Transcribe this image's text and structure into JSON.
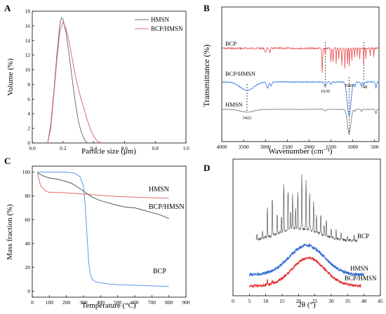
{
  "panels": {
    "a": {
      "letter": "A"
    },
    "b": {
      "letter": "B"
    },
    "c": {
      "letter": "C"
    },
    "d": {
      "letter": "D"
    }
  },
  "colors": {
    "hmsn": "#707070",
    "bcp_hmsn_a": "#e06a6a",
    "bcp_b": "#e84a4a",
    "bcp_hmsn_b": "#3a7be0",
    "hmsn_b": "#707070",
    "c_bcp": "#5b97ea",
    "c_hmsn": "#e66a6a",
    "c_bcp_hmsn": "#555555",
    "d_bcp": "#444444",
    "d_hmsn": "#2f6bd6",
    "d_bcp_hmsn": "#e0302f",
    "marker_lines": "#222222"
  },
  "chart_data": [
    {
      "id": "A",
      "type": "line",
      "xlabel": "Particle size (μm)",
      "ylabel": "Volume (%)",
      "xlim": [
        0,
        1.0
      ],
      "ylim": [
        0,
        18
      ],
      "xticks": [
        "0.0",
        "0.2",
        "0.4",
        "0.6",
        "0.8",
        "1.0"
      ],
      "yticks": [
        "0",
        "2",
        "4",
        "6",
        "8",
        "10",
        "12",
        "14",
        "16",
        "18"
      ],
      "legend_position": "top-right",
      "series": [
        {
          "name": "HMSN",
          "x": [
            0.1,
            0.12,
            0.14,
            0.16,
            0.18,
            0.19,
            0.2,
            0.22,
            0.24,
            0.26,
            0.28,
            0.3,
            0.32,
            0.34,
            0.36
          ],
          "y": [
            0,
            2.5,
            7.0,
            12.0,
            16.3,
            17.1,
            16.9,
            15.0,
            12.0,
            8.7,
            5.5,
            3.0,
            1.4,
            0.4,
            0
          ]
        },
        {
          "name": "BCP/HMSN",
          "x": [
            0.1,
            0.12,
            0.14,
            0.16,
            0.18,
            0.2,
            0.22,
            0.24,
            0.26,
            0.28,
            0.3,
            0.32,
            0.34,
            0.36,
            0.38,
            0.4,
            0.42,
            0.45
          ],
          "y": [
            0,
            2.0,
            6.5,
            11.3,
            15.3,
            16.5,
            15.6,
            13.8,
            11.5,
            9.2,
            7.4,
            5.8,
            4.4,
            3.0,
            1.8,
            0.9,
            0.3,
            0
          ]
        }
      ]
    },
    {
      "id": "B",
      "type": "line",
      "xlabel": "Wavenumber (cm⁻¹)",
      "ylabel": "Transmittance (%)",
      "xlim": [
        4000,
        400
      ],
      "xticks": [
        "4000",
        "3500",
        "3000",
        "2500",
        "2000",
        "1500",
        "1000",
        "500"
      ],
      "series_labels": [
        "BCP",
        "BCP/HMSN",
        "HMSN"
      ],
      "annotations": [
        "3422",
        "1630",
        "1085",
        "748"
      ],
      "marker_positions": [
        3422,
        1630,
        1085,
        748
      ]
    },
    {
      "id": "C",
      "type": "line",
      "xlabel": "Temperature (°C)",
      "ylabel": "Mass fraction (%)",
      "xlim": [
        0,
        900
      ],
      "ylim": [
        -5,
        105
      ],
      "xticks": [
        "0",
        "100",
        "200",
        "300",
        "400",
        "500",
        "600",
        "700",
        "800",
        "900"
      ],
      "yticks": [
        "0",
        "20",
        "40",
        "60",
        "80",
        "100"
      ],
      "series": [
        {
          "name": "BCP",
          "x": [
            30,
            100,
            200,
            250,
            280,
            300,
            310,
            320,
            330,
            340,
            350,
            370,
            400,
            450,
            500,
            600,
            700,
            800
          ],
          "y": [
            100,
            100,
            100,
            99,
            96,
            88,
            72,
            48,
            25,
            14,
            10,
            8,
            7,
            6,
            5.5,
            5,
            4.5,
            4
          ]
        },
        {
          "name": "HMSN",
          "x": [
            30,
            50,
            80,
            100,
            150,
            200,
            300,
            400,
            500,
            600,
            700,
            800
          ],
          "y": [
            99,
            88,
            84,
            83,
            83,
            82.5,
            81.5,
            80.5,
            79.5,
            79,
            78.5,
            78
          ]
        },
        {
          "name": "BCP/HMSN",
          "x": [
            30,
            60,
            100,
            150,
            200,
            230,
            260,
            290,
            320,
            350,
            400,
            450,
            500,
            550,
            600,
            650,
            700,
            750,
            800
          ],
          "y": [
            99.5,
            97,
            95,
            94,
            92,
            90.5,
            88,
            85,
            82,
            79,
            76,
            74,
            72,
            70.5,
            70,
            68,
            66,
            64,
            61
          ]
        }
      ]
    },
    {
      "id": "D",
      "type": "line",
      "xlabel": "2θ (°)",
      "xlim": [
        0,
        45
      ],
      "xticks": [
        "0",
        "5",
        "10",
        "15",
        "20",
        "25",
        "30",
        "35",
        "40",
        "45"
      ],
      "series_labels": [
        "BCP",
        "HMSN",
        "BCP/HMSN"
      ],
      "peaks_2theta": [
        10.5,
        12.0,
        13.5,
        15.5,
        16.8,
        18.2,
        19.8,
        21.0,
        22.3,
        23.4,
        24.6,
        26.8,
        28.5
      ]
    }
  ]
}
